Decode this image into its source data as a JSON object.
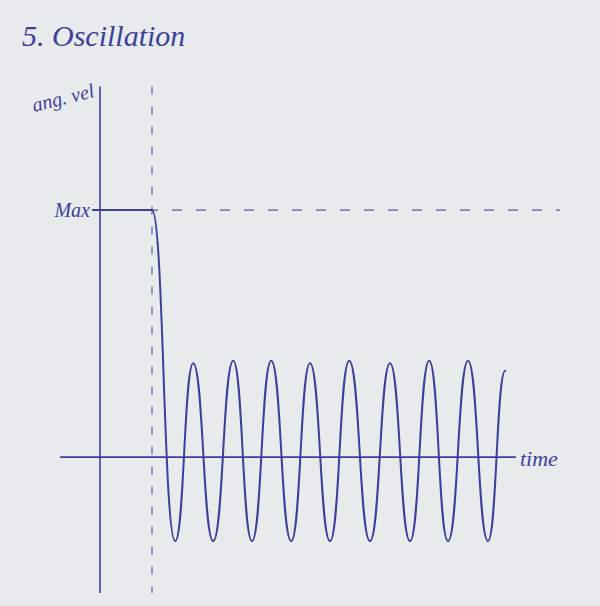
{
  "chart_data": {
    "type": "line",
    "title": "5. Oscillation",
    "y_label": "ang. vel",
    "x_label": "time",
    "x": [
      0,
      1.3,
      1.88,
      2.33,
      2.83,
      3.33,
      3.8,
      4.28,
      4.78,
      5.25,
      5.75,
      6.23,
      6.75,
      7.25,
      7.75,
      8.23,
      8.7,
      9.2,
      9.7,
      10.13
    ],
    "values": [
      1,
      1,
      -0.34,
      0.38,
      -0.34,
      0.39,
      -0.34,
      0.39,
      -0.34,
      0.38,
      -0.34,
      0.39,
      -0.34,
      0.38,
      -0.34,
      0.39,
      -0.34,
      0.39,
      -0.34,
      0.35
    ],
    "color": "#3c3f9c",
    "xlim": [
      -1,
      10.4
    ],
    "ylim": [
      -0.55,
      1.5
    ],
    "yticks": [
      {
        "value": 1,
        "label": "Max"
      }
    ],
    "grid": true,
    "tick_labels": "y"
  }
}
